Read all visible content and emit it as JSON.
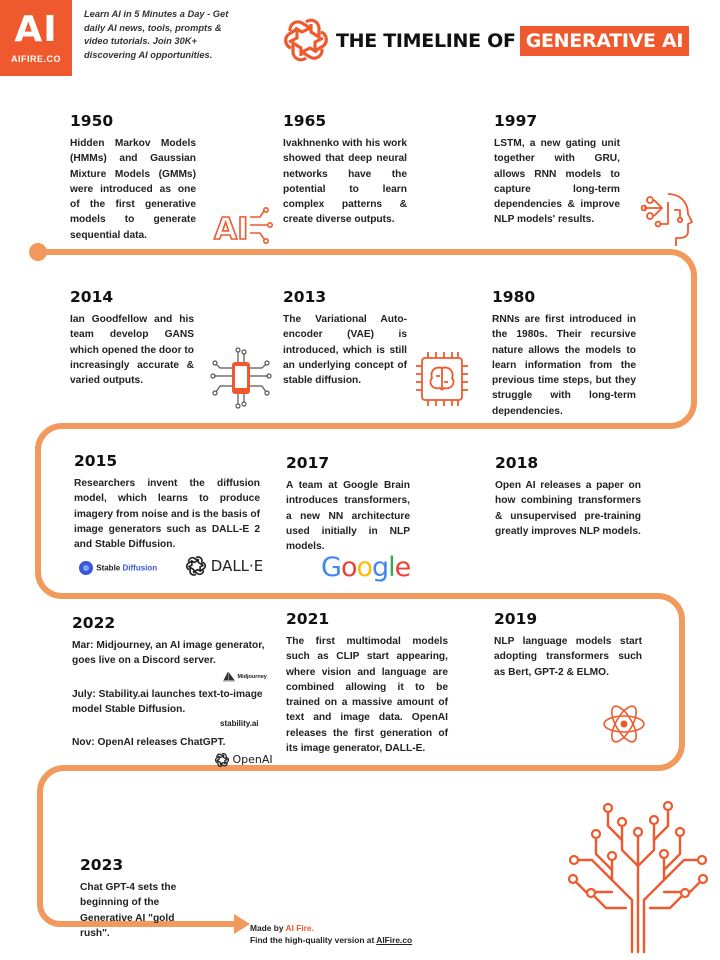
{
  "header": {
    "logo_mark": "AI",
    "logo_site": "AIFIRE.CO",
    "tagline": "Learn AI in 5 Minutes a Day - Get daily AI news, tools, prompts & video tutorials. Join 30K+ discovering AI opportunities.",
    "title_plain": "THE TIMELINE OF",
    "title_accent": "GENERATIVE AI",
    "accent_color": "#ee5a2e"
  },
  "timeline": {
    "y1950": {
      "year": "1950",
      "text": "Hidden Markov Models (HMMs) and Gaussian Mixture Models (GMMs) were introduced as one of the first generative models to generate sequential data."
    },
    "y1965": {
      "year": "1965",
      "text": "Ivakhnenko with his work showed that deep neural networks have the potential to learn complex patterns & create diverse outputs."
    },
    "y1997": {
      "year": "1997",
      "text": "LSTM, a new gating unit together with GRU, allows RNN models to capture long-term dependencies & improve NLP models' results."
    },
    "y2014": {
      "year": "2014",
      "text": "Ian Goodfellow and his team develop GANS which opened the door to increasingly accurate & varied outputs."
    },
    "y2013": {
      "year": "2013",
      "text": "The Variational Auto-encoder (VAE) is introduced, which is still an underlying concept of stable diffusion."
    },
    "y1980": {
      "year": "1980",
      "text": "RNNs are first introduced in the 1980s. Their recursive nature allows the models to learn information from the previous time steps, but they struggle with long-term dependencies."
    },
    "y2015": {
      "year": "2015",
      "text": "Researchers invent the diffusion model, which learns to produce imagery from noise and is the basis of image generators such as DALL-E 2 and Stable Diffusion."
    },
    "y2017": {
      "year": "2017",
      "text": "A team at Google Brain introduces transformers, a new NN architecture used initially in NLP models."
    },
    "y2018": {
      "year": "2018",
      "text": "Open AI releases a paper on how combining transformers & unsupervised pre-training greatly improves NLP models."
    },
    "y2022": {
      "year": "2022",
      "events": [
        "Mar: Midjourney, an AI image generator, goes live on a Discord server.",
        "July: Stability.ai launches text-to-image model Stable Diffusion.",
        "Nov: OpenAI releases ChatGPT."
      ]
    },
    "y2021": {
      "year": "2021",
      "text": "The first multimodal models such as CLIP start appearing, where vision and language are combined allowing it to be trained on a massive amount of text and image data. OpenAI releases the first generation of its image generator, DALL-E."
    },
    "y2019": {
      "year": "2019",
      "text": "NLP language models start adopting transformers such as Bert, GPT-2 & ELMO."
    },
    "y2023": {
      "year": "2023",
      "text": "Chat GPT-4 sets the beginning of the Generative AI \"gold rush\"."
    }
  },
  "brands": {
    "stable_diffusion_a": "Stable",
    "stable_diffusion_b": "Diffusion",
    "dalle": "DALL·E",
    "google": [
      "G",
      "o",
      "o",
      "g",
      "l",
      "e"
    ],
    "google_colors": [
      "#4285F4",
      "#EA4335",
      "#FBBC05",
      "#4285F4",
      "#34A853",
      "#EA4335"
    ],
    "midjourney": "Midjourney",
    "stability": "stability.ai",
    "openai": "OpenAI",
    "icon_ai_text": "AI"
  },
  "footer": {
    "made_by": "Made by",
    "made_by_brand": "AI Fire.",
    "hq_text": "Find the high-quality version at",
    "hq_link": "AIFire.co"
  },
  "icons": [
    "openai-logo-icon",
    "ai-circuit-icon",
    "robot-head-icon",
    "phone-circuit-icon",
    "brain-chip-icon",
    "atom-icon",
    "circuit-tree-icon"
  ]
}
